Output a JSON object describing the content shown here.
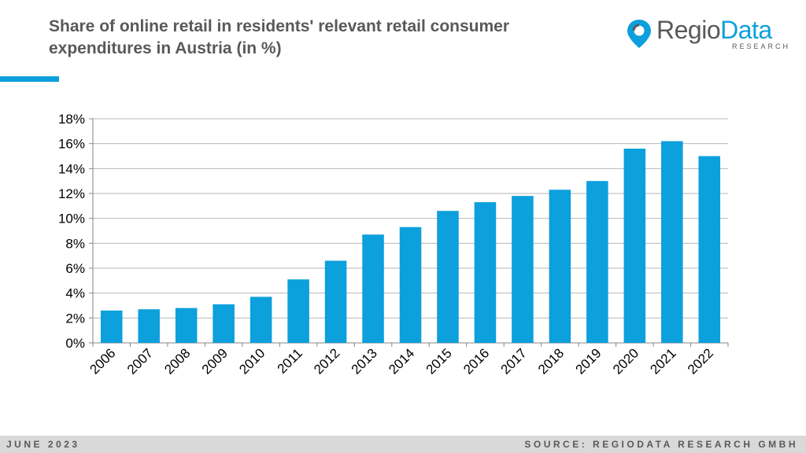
{
  "header": {
    "title": "Share of online retail in residents' relevant retail consumer expenditures in Austria (in %)",
    "accent_color": "#0ca0dc"
  },
  "logo": {
    "text_main": "Regio",
    "text_accent": "Data",
    "subtext": "RESEARCH",
    "icon": "location-pin-icon"
  },
  "footer": {
    "date": "JUNE 2023",
    "source": "SOURCE: REGIODATA RESEARCH GMBH"
  },
  "chart_data": {
    "type": "bar",
    "categories": [
      "2006",
      "2007",
      "2008",
      "2009",
      "2010",
      "2011",
      "2012",
      "2013",
      "2014",
      "2015",
      "2016",
      "2017",
      "2018",
      "2019",
      "2020",
      "2021",
      "2022"
    ],
    "values": [
      2.6,
      2.7,
      2.8,
      3.1,
      3.7,
      5.1,
      6.6,
      8.7,
      9.3,
      10.6,
      11.3,
      11.8,
      12.3,
      13.0,
      15.6,
      16.2,
      15.0
    ],
    "ylim": [
      0,
      18
    ],
    "yticks": [
      0,
      2,
      4,
      6,
      8,
      10,
      12,
      14,
      16,
      18
    ],
    "ytick_suffix": "%",
    "bar_color": "#0ca0dc",
    "grid": true,
    "legend": "none"
  }
}
